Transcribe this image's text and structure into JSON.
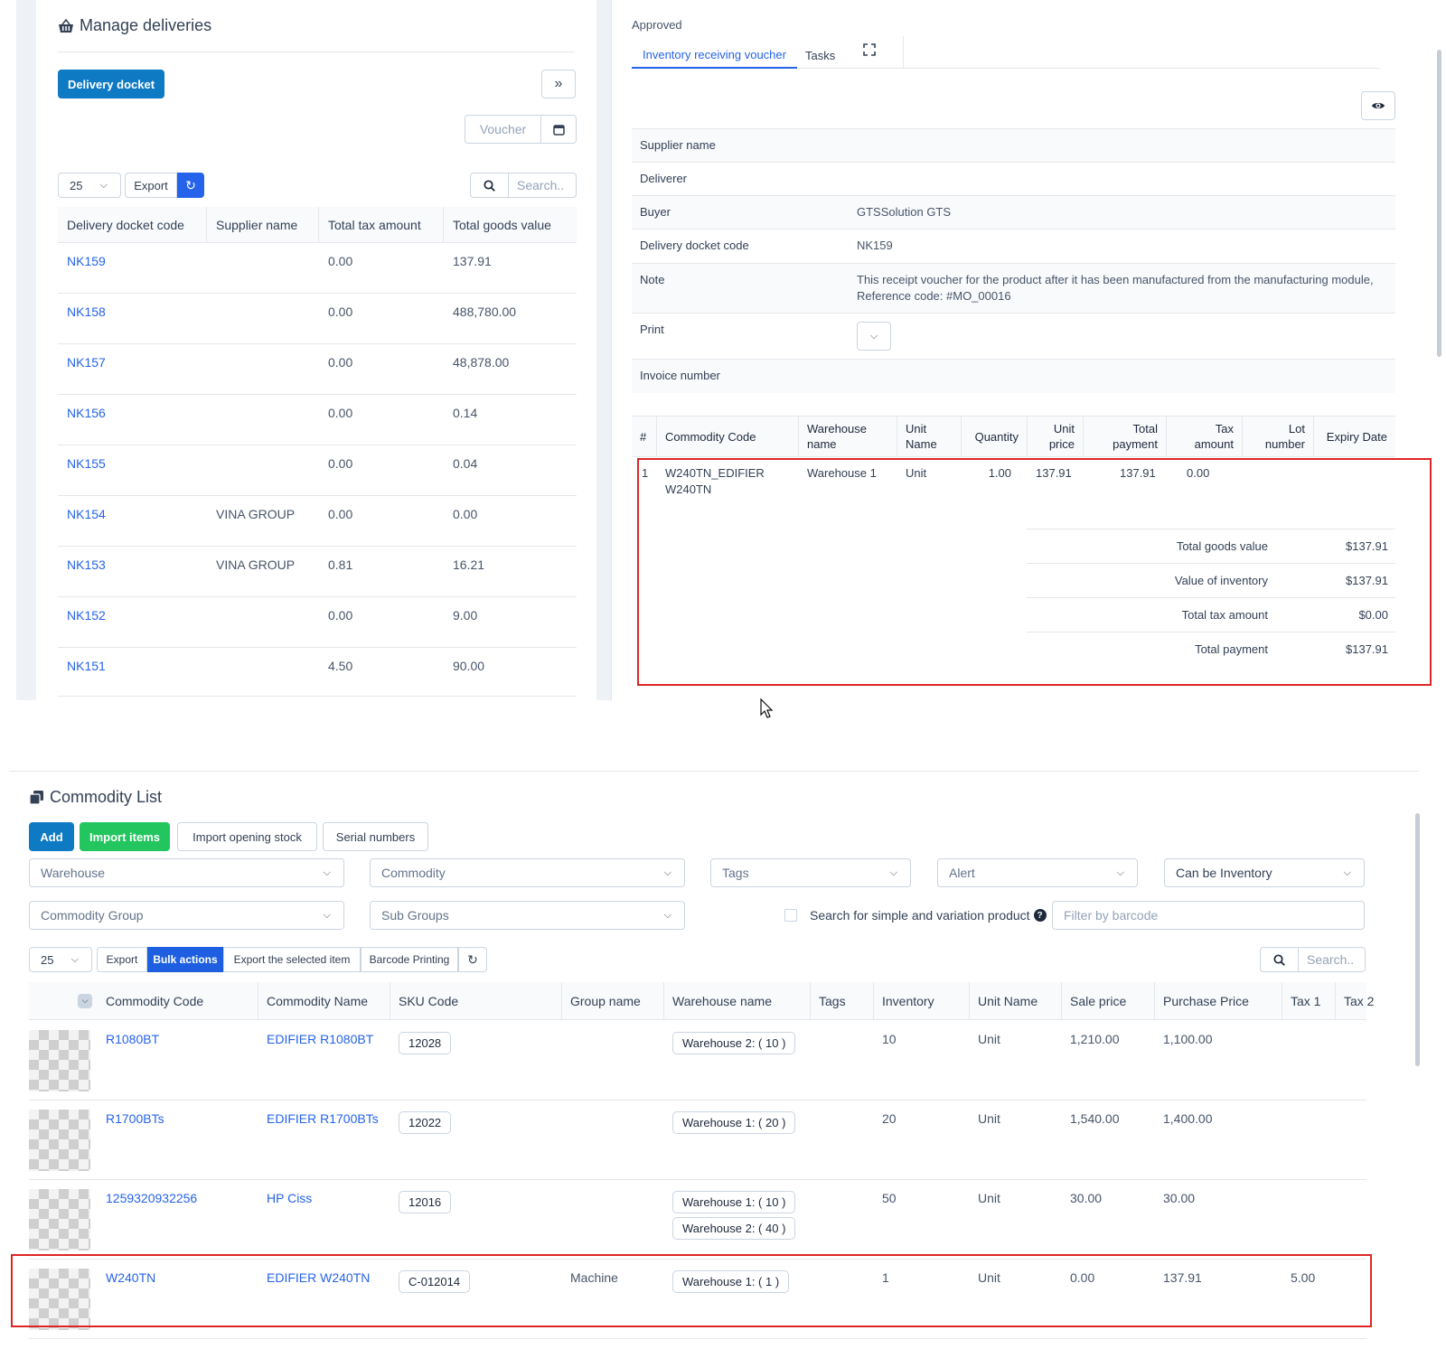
{
  "top_left": {
    "title": "Manage deliveries",
    "delivery_docket_btn": "Delivery docket",
    "voucher_placeholder": "Voucher",
    "page_size": "25",
    "export_label": "Export",
    "search_placeholder": "Search..",
    "columns": [
      "Delivery docket code",
      "Supplier name",
      "Total tax amount",
      "Total goods value"
    ],
    "rows": [
      {
        "code": "NK159",
        "supplier": "",
        "tax": "0.00",
        "goods": "137.91"
      },
      {
        "code": "NK158",
        "supplier": "",
        "tax": "0.00",
        "goods": "488,780.00"
      },
      {
        "code": "NK157",
        "supplier": "",
        "tax": "0.00",
        "goods": "48,878.00"
      },
      {
        "code": "NK156",
        "supplier": "",
        "tax": "0.00",
        "goods": "0.14"
      },
      {
        "code": "NK155",
        "supplier": "",
        "tax": "0.00",
        "goods": "0.04"
      },
      {
        "code": "NK154",
        "supplier": "VINA GROUP",
        "tax": "0.00",
        "goods": "0.00"
      },
      {
        "code": "NK153",
        "supplier": "VINA GROUP",
        "tax": "0.81",
        "goods": "16.21"
      },
      {
        "code": "NK152",
        "supplier": "",
        "tax": "0.00",
        "goods": "9.00"
      },
      {
        "code": "NK151",
        "supplier": "",
        "tax": "4.50",
        "goods": "90.00"
      }
    ]
  },
  "top_right": {
    "status": "Approved",
    "tabs": [
      "Inventory receiving voucher",
      "Tasks"
    ],
    "info": [
      {
        "label": "Supplier name",
        "value": ""
      },
      {
        "label": "Deliverer",
        "value": ""
      },
      {
        "label": "Buyer",
        "value": "GTSSolution GTS"
      },
      {
        "label": "Delivery docket code",
        "value": "NK159"
      },
      {
        "label": "Note",
        "value": "This receipt voucher for the product after it has been manufactured from the manufacturing module, Reference code: #MO_00016"
      },
      {
        "label": "Print",
        "value": ""
      },
      {
        "label": "Invoice number",
        "value": ""
      }
    ],
    "item_columns": [
      "#",
      "Commodity Code",
      "Warehouse name",
      "Unit Name",
      "Quantity",
      "Unit price",
      "Total payment",
      "Tax amount",
      "Lot number",
      "Expiry Date"
    ],
    "item_row": {
      "num": "1",
      "code": "W240TN_EDIFIER W240TN",
      "warehouse": "Warehouse 1",
      "unit": "Unit",
      "qty": "1.00",
      "price": "137.91",
      "total": "137.91",
      "tax": "0.00",
      "lot": "",
      "expiry": ""
    },
    "totals": [
      {
        "label": "Total goods value",
        "value": "$137.91"
      },
      {
        "label": "Value of inventory",
        "value": "$137.91"
      },
      {
        "label": "Total tax amount",
        "value": "$0.00"
      },
      {
        "label": "Total payment",
        "value": "$137.91"
      }
    ]
  },
  "bottom": {
    "title": "Commodity List",
    "buttons": {
      "add": "Add",
      "import_items": "Import items",
      "import_opening": "Import opening stock",
      "serial": "Serial numbers"
    },
    "filters": {
      "warehouse": "Warehouse",
      "commodity": "Commodity",
      "tags": "Tags",
      "alert": "Alert",
      "can_be_inventory": "Can be Inventory",
      "commodity_group": "Commodity Group",
      "sub_groups": "Sub Groups",
      "search_variation": "Search for simple and variation product",
      "barcode_placeholder": "Filter by barcode"
    },
    "toolbar": {
      "page_size": "25",
      "export": "Export",
      "bulk": "Bulk actions",
      "export_selected": "Export the selected item",
      "barcode_printing": "Barcode Printing",
      "search_placeholder": "Search.."
    },
    "columns": [
      "Commodity Code",
      "Commodity Name",
      "SKU Code",
      "Group name",
      "Warehouse name",
      "Tags",
      "Inventory",
      "Unit Name",
      "Sale price",
      "Purchase Price",
      "Tax 1",
      "Tax 2"
    ],
    "rows": [
      {
        "code": "R1080BT",
        "name": "EDIFIER R1080BT",
        "sku": "12028",
        "group": "",
        "warehouses": [
          "Warehouse 2: ( 10 )"
        ],
        "inventory": "10",
        "unit": "Unit",
        "sale": "1,210.00",
        "purchase": "1,100.00",
        "tax1": ""
      },
      {
        "code": "R1700BTs",
        "name": "EDIFIER R1700BTs",
        "sku": "12022",
        "group": "",
        "warehouses": [
          "Warehouse 1: ( 20 )"
        ],
        "inventory": "20",
        "unit": "Unit",
        "sale": "1,540.00",
        "purchase": "1,400.00",
        "tax1": ""
      },
      {
        "code": "1259320932256",
        "name": "HP Ciss",
        "sku": "12016",
        "group": "",
        "warehouses": [
          "Warehouse 1: ( 10 )",
          "Warehouse 2: ( 40 )"
        ],
        "inventory": "50",
        "unit": "Unit",
        "sale": "30.00",
        "purchase": "30.00",
        "tax1": ""
      },
      {
        "code": "W240TN",
        "name": "EDIFIER W240TN",
        "sku": "C-012014",
        "group": "Machine",
        "warehouses": [
          "Warehouse 1: ( 1 )"
        ],
        "inventory": "1",
        "unit": "Unit",
        "sale": "0.00",
        "purchase": "137.91",
        "tax1": "5.00"
      }
    ]
  },
  "colors": {
    "link": "#2563eb",
    "primary": "#0e7ac4",
    "green": "#22c55e",
    "highlight": "#dc2626"
  }
}
